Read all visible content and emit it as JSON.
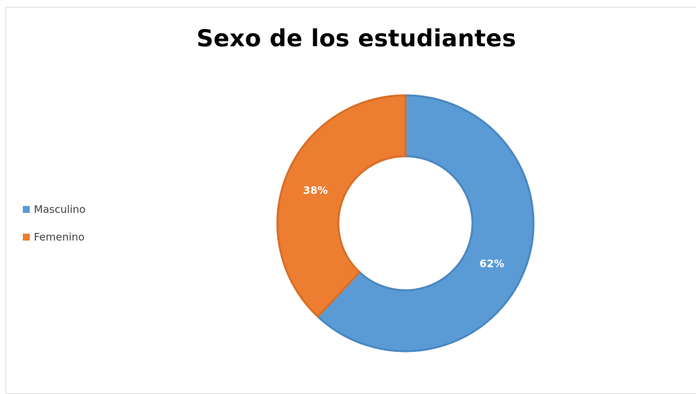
{
  "chart_data": {
    "type": "pie",
    "title": "Sexo de los estudiantes",
    "categories": [
      "Masculino",
      "Femenino"
    ],
    "values": [
      62,
      38
    ],
    "data_labels": [
      "62%",
      "38%"
    ],
    "colors": [
      "#5b9bd5",
      "#ed7d31"
    ],
    "donut": true,
    "legend_position": "left"
  }
}
